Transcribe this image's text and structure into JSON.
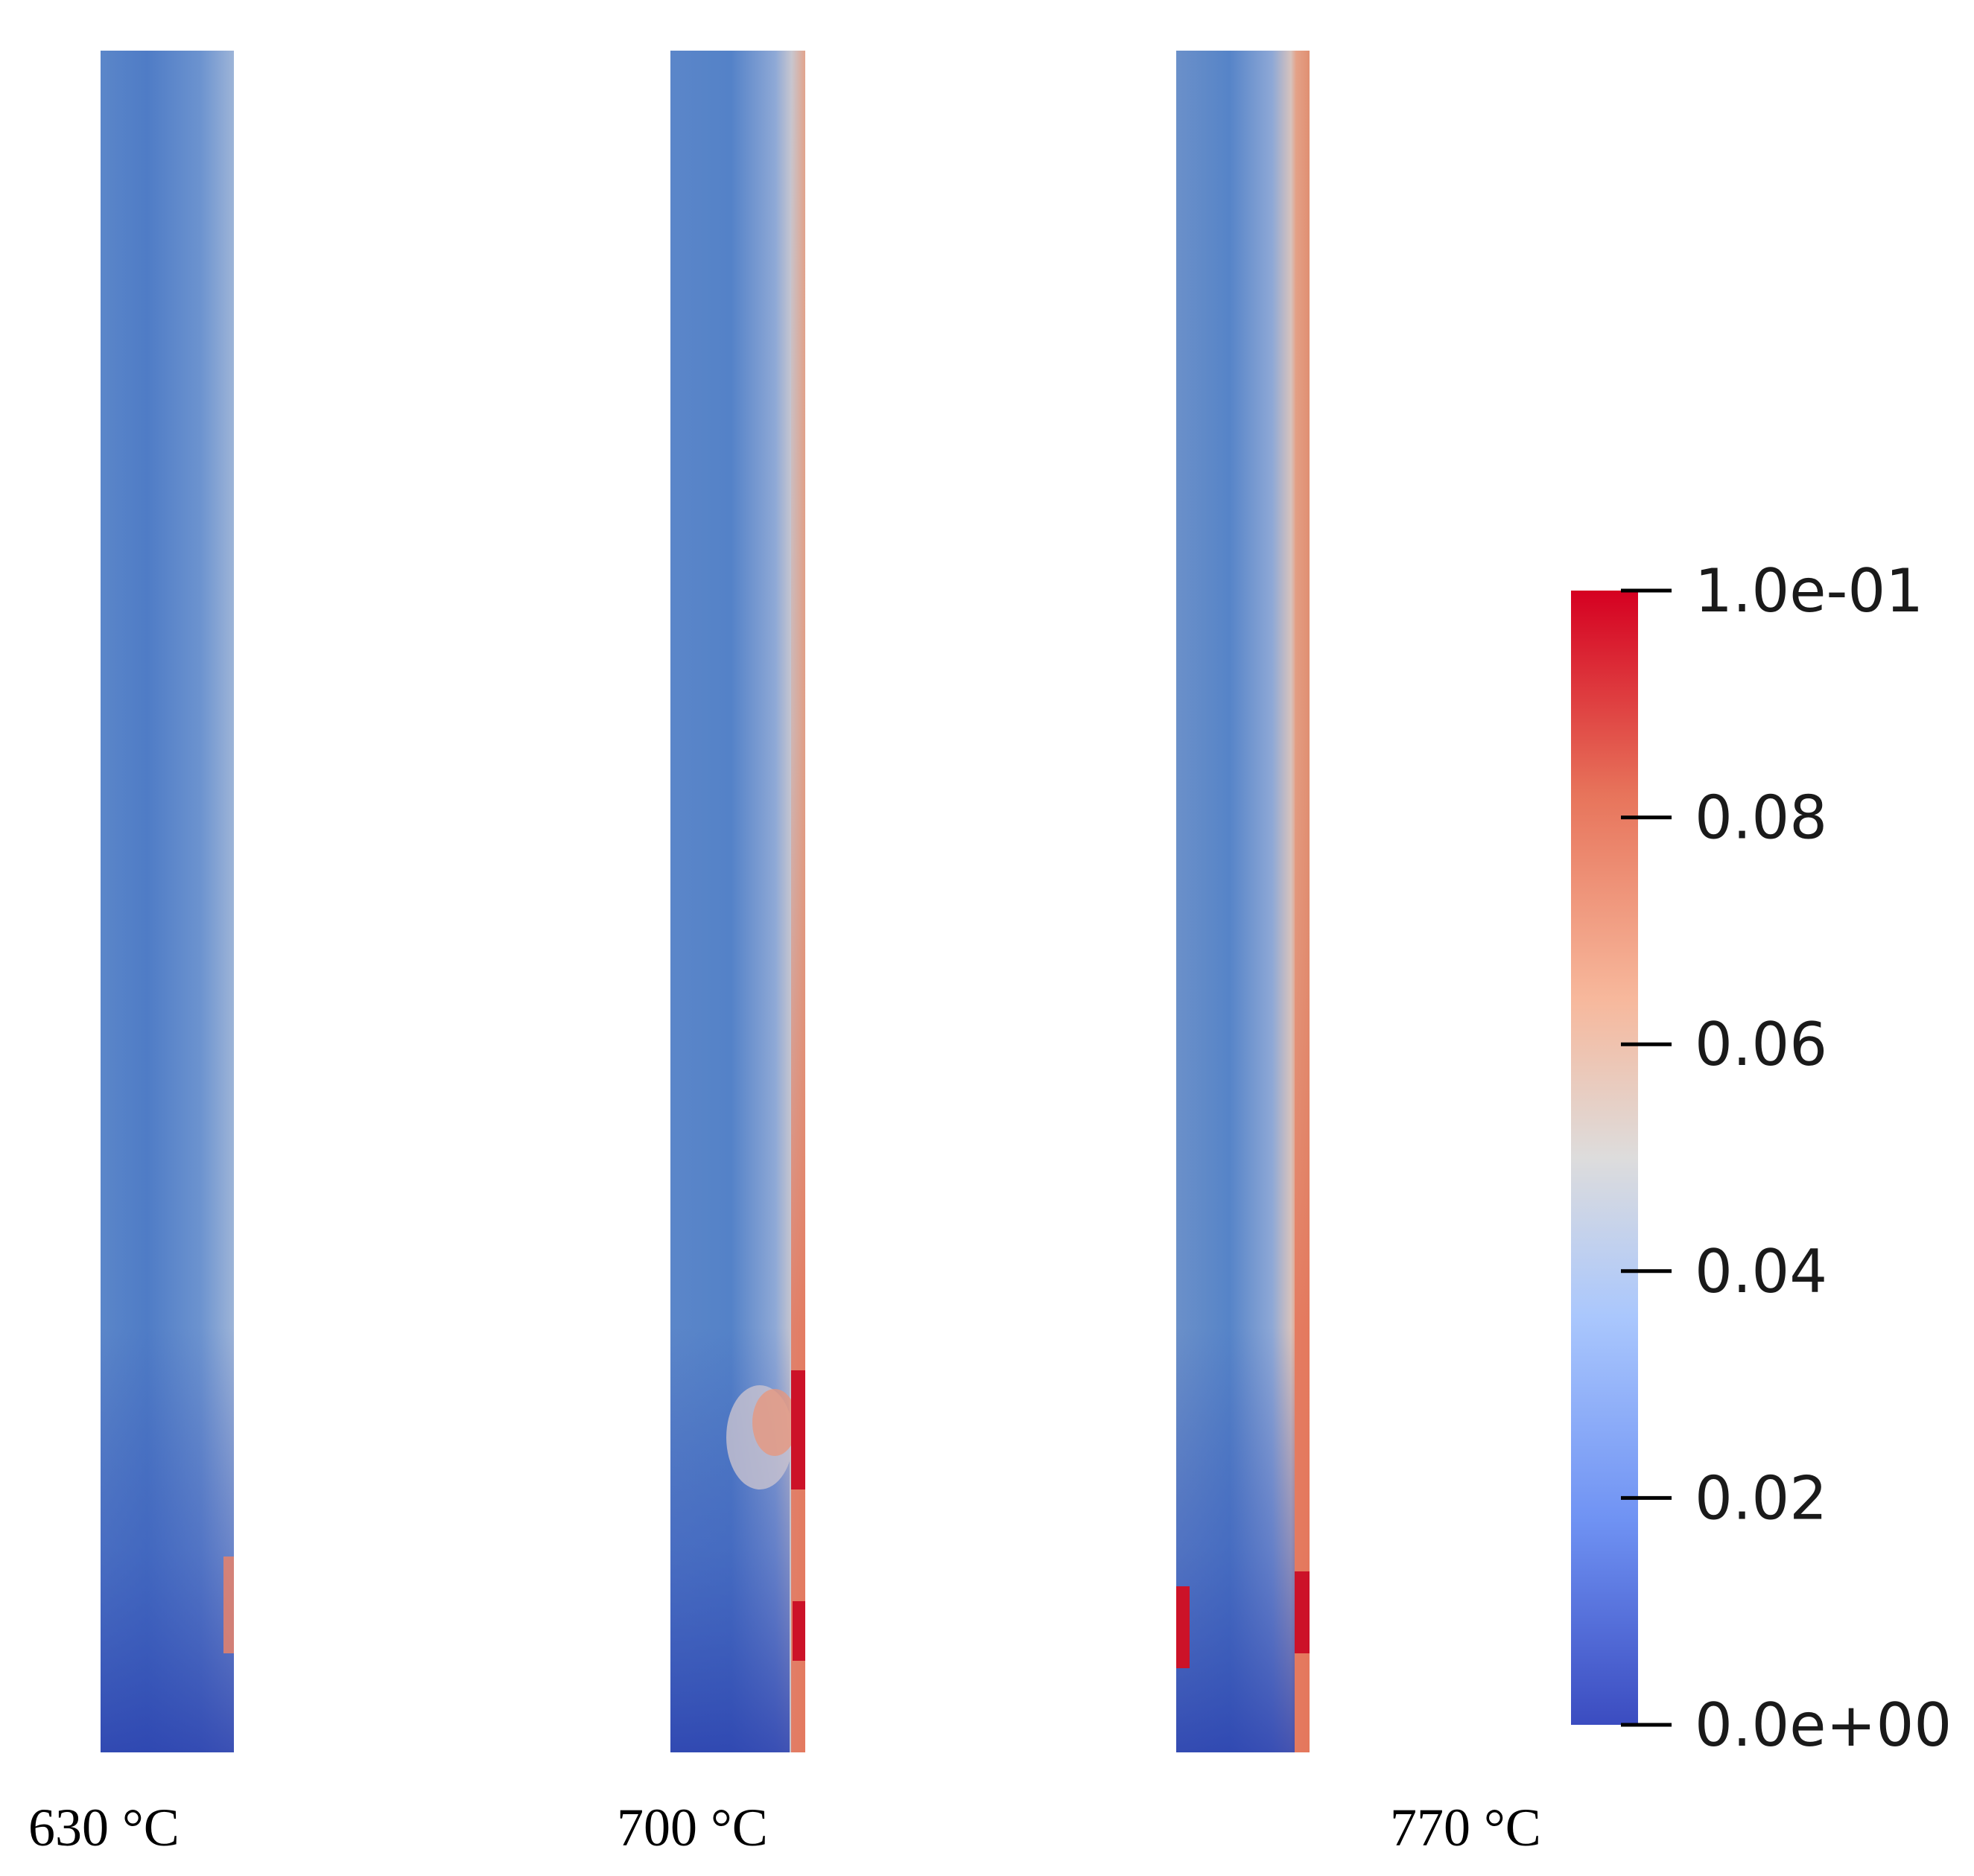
{
  "chart_data": {
    "type": "heatmap",
    "panels": [
      {
        "label": "630 °C",
        "temperature_c": 630
      },
      {
        "label": "700 °C",
        "temperature_c": 700
      },
      {
        "label": "770 °C",
        "temperature_c": 770
      }
    ],
    "colorbar": {
      "min": 0.0,
      "max": 0.1,
      "colormap": "cool-to-warm",
      "colors": [
        "#3b4cc0",
        "#6f92f3",
        "#aac7fd",
        "#dddcdc",
        "#f7b89c",
        "#e7745b",
        "#d50021"
      ],
      "ticks": [
        {
          "value": 0.1,
          "label": "1.0e-01"
        },
        {
          "value": 0.08,
          "label": "0.08"
        },
        {
          "value": 0.06,
          "label": "0.06"
        },
        {
          "value": 0.04,
          "label": "0.04"
        },
        {
          "value": 0.02,
          "label": "0.02"
        },
        {
          "value": 0.0,
          "label": "0.0e+00"
        }
      ]
    }
  }
}
